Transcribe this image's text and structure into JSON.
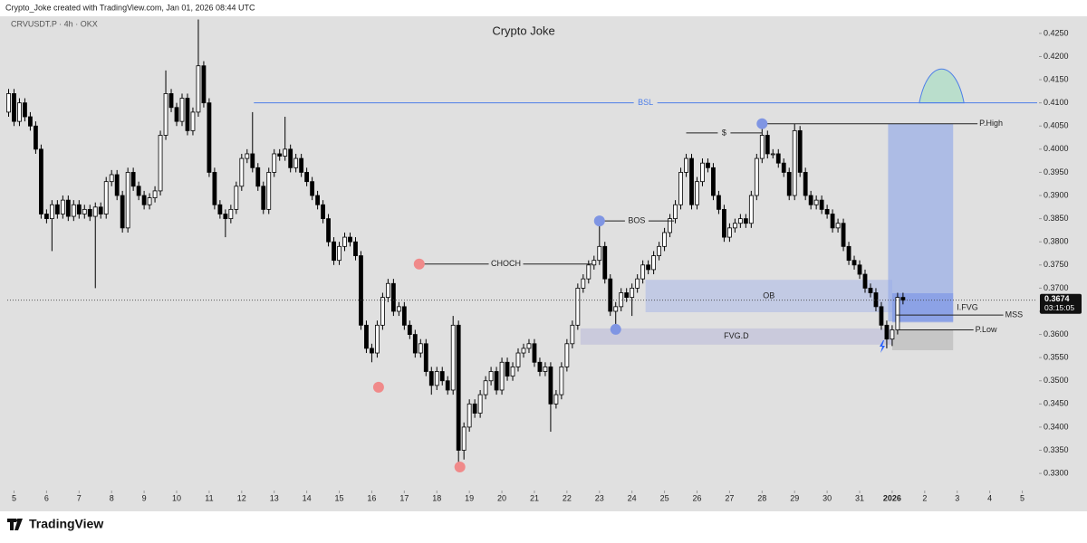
{
  "header": "Crypto_Joke created with TradingView.com, Jan 01, 2026 08:44 UTC",
  "footer": "TradingView",
  "chart_data": {
    "type": "candlestick",
    "title": "Crypto Joke",
    "symbol": "CRVUSDT.P · 4h · OKX",
    "colors": {
      "up": "#ffffff",
      "down": "#000000",
      "wick": "#000000"
    },
    "xlim": [
      -5,
      755
    ],
    "ylim": [
      0.3267,
      0.4283
    ],
    "xticks": [
      {
        "value": 0,
        "label": "5"
      },
      {
        "value": 24,
        "label": "6"
      },
      {
        "value": 48,
        "label": "7"
      },
      {
        "value": 72,
        "label": "8"
      },
      {
        "value": 96,
        "label": "9"
      },
      {
        "value": 120,
        "label": "10"
      },
      {
        "value": 144,
        "label": "11"
      },
      {
        "value": 168,
        "label": "12"
      },
      {
        "value": 192,
        "label": "13"
      },
      {
        "value": 216,
        "label": "14"
      },
      {
        "value": 240,
        "label": "15"
      },
      {
        "value": 264,
        "label": "16"
      },
      {
        "value": 288,
        "label": "17"
      },
      {
        "value": 312,
        "label": "18"
      },
      {
        "value": 336,
        "label": "19"
      },
      {
        "value": 360,
        "label": "20"
      },
      {
        "value": 384,
        "label": "21"
      },
      {
        "value": 408,
        "label": "22"
      },
      {
        "value": 432,
        "label": "23"
      },
      {
        "value": 456,
        "label": "24"
      },
      {
        "value": 480,
        "label": "25"
      },
      {
        "value": 504,
        "label": "26"
      },
      {
        "value": 528,
        "label": "27"
      },
      {
        "value": 552,
        "label": "28"
      },
      {
        "value": 576,
        "label": "29"
      },
      {
        "value": 600,
        "label": "30"
      },
      {
        "value": 624,
        "label": "31"
      },
      {
        "value": 648,
        "label": "2026"
      },
      {
        "value": 672,
        "label": "2"
      },
      {
        "value": 696,
        "label": "3"
      },
      {
        "value": 720,
        "label": "4"
      },
      {
        "value": 744,
        "label": "5"
      }
    ],
    "yticks": [
      {
        "value": 0.33,
        "label": "0.3300"
      },
      {
        "value": 0.335,
        "label": "0.3350"
      },
      {
        "value": 0.34,
        "label": "0.3400"
      },
      {
        "value": 0.345,
        "label": "0.3450"
      },
      {
        "value": 0.35,
        "label": "0.3500"
      },
      {
        "value": 0.355,
        "label": "0.3550"
      },
      {
        "value": 0.36,
        "label": "0.3600"
      },
      {
        "value": 0.365,
        "label": "0.3650"
      },
      {
        "value": 0.37,
        "label": "0.3700"
      },
      {
        "value": 0.375,
        "label": "0.3750"
      },
      {
        "value": 0.38,
        "label": "0.3800"
      },
      {
        "value": 0.385,
        "label": "0.3850"
      },
      {
        "value": 0.39,
        "label": "0.3900"
      },
      {
        "value": 0.395,
        "label": "0.3950"
      },
      {
        "value": 0.4,
        "label": "0.4000"
      },
      {
        "value": 0.405,
        "label": "0.4050"
      },
      {
        "value": 0.41,
        "label": "0.4100"
      },
      {
        "value": 0.415,
        "label": "0.4150"
      },
      {
        "value": 0.42,
        "label": "0.4200"
      },
      {
        "value": 0.425,
        "label": "0.4250"
      }
    ],
    "x": [
      -4,
      0,
      4,
      8,
      12,
      16,
      20,
      24,
      28,
      32,
      36,
      40,
      44,
      48,
      52,
      56,
      60,
      64,
      68,
      72,
      76,
      80,
      84,
      88,
      92,
      96,
      100,
      104,
      108,
      112,
      116,
      120,
      124,
      128,
      132,
      136,
      140,
      144,
      148,
      152,
      156,
      160,
      164,
      168,
      172,
      176,
      180,
      184,
      188,
      192,
      196,
      200,
      204,
      208,
      212,
      216,
      220,
      224,
      228,
      232,
      236,
      240,
      244,
      248,
      252,
      256,
      260,
      264,
      268,
      272,
      276,
      280,
      284,
      288,
      292,
      296,
      300,
      304,
      308,
      312,
      316,
      320,
      324,
      328,
      332,
      336,
      340,
      344,
      348,
      352,
      356,
      360,
      364,
      368,
      372,
      376,
      380,
      384,
      388,
      392,
      396,
      400,
      404,
      408,
      412,
      416,
      420,
      424,
      428,
      432,
      436,
      440,
      444,
      448,
      452,
      456,
      460,
      464,
      468,
      472,
      476,
      480,
      484,
      488,
      492,
      496,
      500,
      504,
      508,
      512,
      516,
      520,
      524,
      528,
      532,
      536,
      540,
      544,
      548,
      552,
      556,
      560,
      564,
      568,
      572,
      576,
      580,
      584,
      588,
      592,
      596,
      600,
      604,
      608,
      612,
      616,
      620,
      624,
      628,
      632,
      636,
      640,
      644,
      648,
      652,
      656
    ],
    "open": [
      0.408,
      0.412,
      0.406,
      0.41,
      0.407,
      0.405,
      0.4,
      0.386,
      0.385,
      0.388,
      0.386,
      0.389,
      0.3855,
      0.388,
      0.386,
      0.387,
      0.3855,
      0.3875,
      0.386,
      0.393,
      0.3945,
      0.39,
      0.383,
      0.395,
      0.392,
      0.39,
      0.388,
      0.3895,
      0.391,
      0.403,
      0.412,
      0.409,
      0.406,
      0.411,
      0.404,
      0.408,
      0.418,
      0.41,
      0.395,
      0.388,
      0.386,
      0.385,
      0.387,
      0.392,
      0.398,
      0.399,
      0.396,
      0.392,
      0.387,
      0.395,
      0.399,
      0.3985,
      0.4,
      0.396,
      0.398,
      0.395,
      0.393,
      0.39,
      0.388,
      0.385,
      0.38,
      0.376,
      0.379,
      0.381,
      0.38,
      0.377,
      0.362,
      0.357,
      0.356,
      0.362,
      0.368,
      0.371,
      0.365,
      0.366,
      0.362,
      0.36,
      0.356,
      0.358,
      0.352,
      0.349,
      0.352,
      0.35,
      0.348,
      0.362,
      0.335,
      0.34,
      0.345,
      0.343,
      0.347,
      0.35,
      0.352,
      0.348,
      0.354,
      0.351,
      0.353,
      0.356,
      0.357,
      0.358,
      0.354,
      0.352,
      0.353,
      0.345,
      0.347,
      0.353,
      0.358,
      0.362,
      0.37,
      0.372,
      0.375,
      0.376,
      0.379,
      0.372,
      0.365,
      0.366,
      0.369,
      0.368,
      0.37,
      0.372,
      0.375,
      0.374,
      0.377,
      0.379,
      0.382,
      0.385,
      0.388,
      0.395,
      0.398,
      0.388,
      0.393,
      0.397,
      0.396,
      0.39,
      0.387,
      0.381,
      0.383,
      0.384,
      0.385,
      0.384,
      0.39,
      0.398,
      0.403,
      0.399,
      0.399,
      0.397,
      0.395,
      0.39,
      0.404,
      0.395,
      0.39,
      0.388,
      0.389,
      0.387,
      0.386,
      0.383,
      0.384,
      0.379,
      0.376,
      0.375,
      0.373,
      0.37,
      0.369,
      0.366,
      0.362,
      0.359,
      0.361,
      0.368
    ],
    "high": [
      0.413,
      0.413,
      0.411,
      0.411,
      0.408,
      0.406,
      0.401,
      0.387,
      0.389,
      0.389,
      0.39,
      0.39,
      0.389,
      0.389,
      0.388,
      0.388,
      0.3885,
      0.3885,
      0.394,
      0.3955,
      0.3955,
      0.391,
      0.396,
      0.396,
      0.393,
      0.391,
      0.3905,
      0.392,
      0.404,
      0.417,
      0.413,
      0.41,
      0.412,
      0.412,
      0.409,
      0.428,
      0.419,
      0.411,
      0.396,
      0.389,
      0.387,
      0.388,
      0.393,
      0.399,
      0.4,
      0.408,
      0.397,
      0.393,
      0.396,
      0.4,
      0.4,
      0.407,
      0.401,
      0.399,
      0.399,
      0.396,
      0.394,
      0.391,
      0.389,
      0.386,
      0.381,
      0.38,
      0.382,
      0.382,
      0.381,
      0.378,
      0.363,
      0.358,
      0.363,
      0.369,
      0.372,
      0.372,
      0.367,
      0.367,
      0.363,
      0.361,
      0.359,
      0.359,
      0.353,
      0.353,
      0.353,
      0.351,
      0.364,
      0.363,
      0.341,
      0.346,
      0.346,
      0.348,
      0.351,
      0.353,
      0.353,
      0.355,
      0.355,
      0.354,
      0.357,
      0.358,
      0.359,
      0.359,
      0.355,
      0.354,
      0.354,
      0.348,
      0.354,
      0.359,
      0.363,
      0.371,
      0.373,
      0.376,
      0.377,
      0.384,
      0.38,
      0.373,
      0.367,
      0.37,
      0.37,
      0.371,
      0.373,
      0.376,
      0.376,
      0.378,
      0.38,
      0.383,
      0.386,
      0.389,
      0.396,
      0.399,
      0.399,
      0.394,
      0.398,
      0.398,
      0.397,
      0.391,
      0.388,
      0.384,
      0.385,
      0.386,
      0.386,
      0.391,
      0.399,
      0.405,
      0.404,
      0.4,
      0.4,
      0.398,
      0.396,
      0.4055,
      0.405,
      0.396,
      0.391,
      0.39,
      0.39,
      0.388,
      0.387,
      0.385,
      0.385,
      0.38,
      0.377,
      0.376,
      0.374,
      0.371,
      0.37,
      0.367,
      0.363,
      0.362,
      0.369,
      0.369
    ],
    "low": [
      0.407,
      0.405,
      0.405,
      0.406,
      0.404,
      0.399,
      0.385,
      0.384,
      0.378,
      0.385,
      0.385,
      0.3845,
      0.3845,
      0.385,
      0.385,
      0.3845,
      0.37,
      0.385,
      0.385,
      0.392,
      0.389,
      0.382,
      0.382,
      0.391,
      0.389,
      0.387,
      0.387,
      0.3885,
      0.39,
      0.402,
      0.408,
      0.405,
      0.405,
      0.403,
      0.403,
      0.407,
      0.409,
      0.394,
      0.387,
      0.385,
      0.381,
      0.384,
      0.386,
      0.391,
      0.397,
      0.395,
      0.391,
      0.386,
      0.386,
      0.394,
      0.3975,
      0.3975,
      0.395,
      0.395,
      0.394,
      0.392,
      0.389,
      0.387,
      0.384,
      0.379,
      0.375,
      0.375,
      0.378,
      0.379,
      0.376,
      0.361,
      0.356,
      0.354,
      0.355,
      0.361,
      0.367,
      0.364,
      0.364,
      0.361,
      0.359,
      0.355,
      0.355,
      0.351,
      0.347,
      0.348,
      0.349,
      0.347,
      0.347,
      0.332,
      0.333,
      0.339,
      0.342,
      0.342,
      0.346,
      0.349,
      0.347,
      0.347,
      0.35,
      0.35,
      0.352,
      0.355,
      0.356,
      0.353,
      0.351,
      0.351,
      0.339,
      0.344,
      0.346,
      0.352,
      0.357,
      0.361,
      0.369,
      0.371,
      0.374,
      0.375,
      0.371,
      0.364,
      0.362,
      0.365,
      0.367,
      0.364,
      0.369,
      0.371,
      0.373,
      0.373,
      0.376,
      0.378,
      0.381,
      0.384,
      0.387,
      0.394,
      0.387,
      0.387,
      0.392,
      0.395,
      0.389,
      0.386,
      0.38,
      0.38,
      0.382,
      0.383,
      0.383,
      0.383,
      0.389,
      0.397,
      0.398,
      0.398,
      0.396,
      0.394,
      0.389,
      0.389,
      0.394,
      0.389,
      0.387,
      0.387,
      0.386,
      0.385,
      0.382,
      0.382,
      0.378,
      0.375,
      0.374,
      0.372,
      0.369,
      0.368,
      0.365,
      0.361,
      0.357,
      0.3575,
      0.36,
      0.3665
    ],
    "close": [
      0.412,
      0.406,
      0.41,
      0.407,
      0.405,
      0.4,
      0.386,
      0.385,
      0.388,
      0.386,
      0.389,
      0.3855,
      0.388,
      0.386,
      0.387,
      0.3855,
      0.3875,
      0.386,
      0.393,
      0.3945,
      0.39,
      0.383,
      0.395,
      0.392,
      0.39,
      0.388,
      0.3895,
      0.391,
      0.403,
      0.412,
      0.409,
      0.406,
      0.411,
      0.404,
      0.408,
      0.418,
      0.41,
      0.395,
      0.388,
      0.386,
      0.385,
      0.387,
      0.392,
      0.398,
      0.399,
      0.396,
      0.392,
      0.387,
      0.395,
      0.399,
      0.3985,
      0.4,
      0.396,
      0.398,
      0.395,
      0.393,
      0.39,
      0.388,
      0.385,
      0.38,
      0.376,
      0.379,
      0.381,
      0.38,
      0.377,
      0.362,
      0.357,
      0.356,
      0.362,
      0.368,
      0.371,
      0.365,
      0.366,
      0.362,
      0.36,
      0.356,
      0.358,
      0.352,
      0.349,
      0.352,
      0.35,
      0.348,
      0.362,
      0.335,
      0.34,
      0.345,
      0.343,
      0.347,
      0.35,
      0.352,
      0.348,
      0.354,
      0.351,
      0.353,
      0.356,
      0.357,
      0.358,
      0.354,
      0.352,
      0.353,
      0.345,
      0.347,
      0.353,
      0.358,
      0.362,
      0.37,
      0.372,
      0.375,
      0.376,
      0.379,
      0.372,
      0.365,
      0.366,
      0.369,
      0.368,
      0.37,
      0.372,
      0.375,
      0.374,
      0.377,
      0.379,
      0.382,
      0.385,
      0.388,
      0.395,
      0.398,
      0.388,
      0.393,
      0.397,
      0.396,
      0.39,
      0.387,
      0.381,
      0.383,
      0.384,
      0.385,
      0.384,
      0.39,
      0.398,
      0.403,
      0.399,
      0.399,
      0.397,
      0.395,
      0.39,
      0.404,
      0.395,
      0.39,
      0.388,
      0.389,
      0.387,
      0.386,
      0.383,
      0.384,
      0.379,
      0.376,
      0.375,
      0.373,
      0.37,
      0.369,
      0.366,
      0.362,
      0.359,
      0.361,
      0.368,
      0.3674
    ],
    "zones": [
      {
        "start": 645,
        "end": 693,
        "top": 0.4055,
        "bottom": 0.3628,
        "color": "rgba(110,145,235,0.45)"
      },
      {
        "start": 648,
        "end": 693,
        "top": 0.361,
        "bottom": 0.3566,
        "color": "rgba(150,150,150,0.35)"
      },
      {
        "label": "OB",
        "align": "middle",
        "start": 466,
        "end": 648,
        "top": 0.3718,
        "bottom": 0.3648,
        "color": "rgba(150,170,235,0.4)"
      },
      {
        "label": "FVG.D",
        "align": "middle",
        "start": 418,
        "end": 648,
        "top": 0.3613,
        "bottom": 0.3578,
        "color": "rgba(175,175,215,0.45)"
      },
      {
        "label": "I.FVG",
        "align": "outside",
        "start": 648,
        "end": 693,
        "top": 0.3689,
        "bottom": 0.3626,
        "color": "rgba(100,130,230,0.45)"
      }
    ],
    "levels": [
      {
        "label": "BSL",
        "align": "middle",
        "price": 0.41,
        "start": 177,
        "end": 755,
        "color": "#4d7ee8"
      },
      {
        "label": "P.High",
        "align": "end",
        "price": 0.4055,
        "start": 552,
        "end": 711,
        "color": "#222222"
      },
      {
        "label": "$",
        "align": "middle",
        "price": 0.4035,
        "start": 496,
        "end": 552,
        "color": "#222222"
      },
      {
        "label": "BOS",
        "align": "middle",
        "price": 0.3845,
        "start": 432,
        "end": 487,
        "color": "#222222"
      },
      {
        "label": "CHOCH",
        "align": "middle",
        "price": 0.3752,
        "start": 299,
        "end": 427,
        "color": "#222222"
      },
      {
        "label": "MSS",
        "align": "end",
        "price": 0.3642,
        "start": 651,
        "end": 730,
        "color": "#222222"
      },
      {
        "label": "P.Low",
        "align": "end",
        "price": 0.361,
        "start": 651,
        "end": 708,
        "color": "#222222"
      }
    ],
    "markers": [
      {
        "x": 299,
        "price": 0.3752,
        "color": "#f08a8a"
      },
      {
        "x": 269,
        "price": 0.3486,
        "color": "#f08a8a"
      },
      {
        "x": 329,
        "price": 0.3314,
        "color": "#f08a8a"
      },
      {
        "x": 432,
        "price": 0.3845,
        "color": "#7f95e3"
      },
      {
        "x": 444,
        "price": 0.3611,
        "color": "#7f95e3"
      },
      {
        "x": 552,
        "price": 0.4055,
        "color": "#7f95e3"
      }
    ],
    "target": {
      "start": 668,
      "end": 701,
      "base": 0.41,
      "top": 0.4175
    },
    "last": {
      "price": 0.3674,
      "label": "0.3674",
      "countdown": "03:15:05"
    }
  }
}
